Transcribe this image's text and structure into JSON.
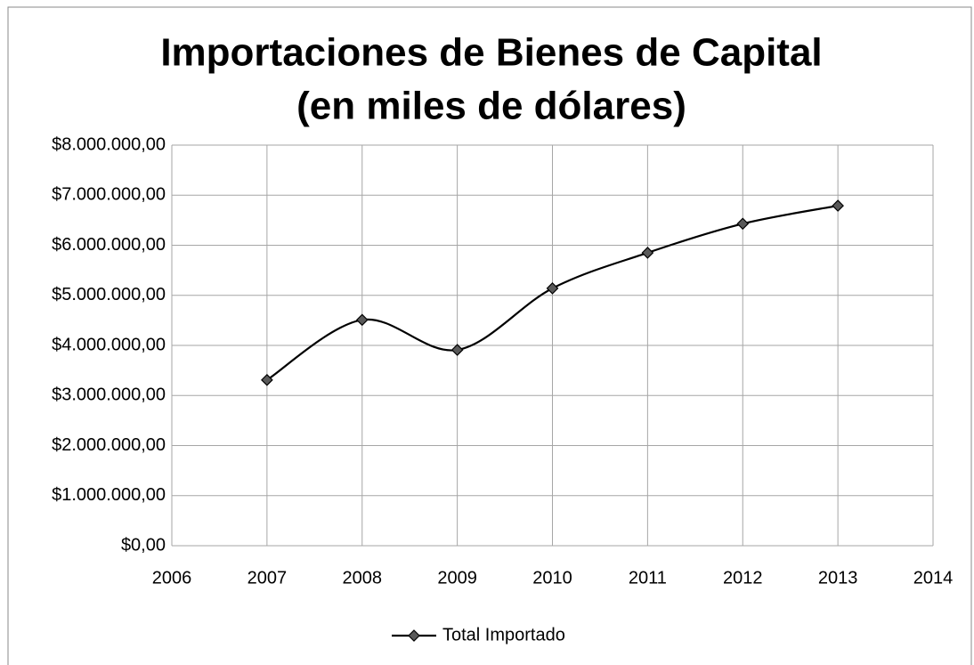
{
  "chart_data": {
    "type": "line",
    "title": [
      "Importaciones de Bienes de Capital",
      "(en miles de dólares)"
    ],
    "x": [
      2007,
      2008,
      2009,
      2010,
      2011,
      2012,
      2013
    ],
    "series": [
      {
        "name": "Total Importado",
        "color": "#000000",
        "marker_color": "#595959",
        "values": [
          3310000,
          4510000,
          3910000,
          5140000,
          5850000,
          6430000,
          6790000
        ]
      }
    ],
    "xlim": [
      2006,
      2014
    ],
    "xticks": [
      2006,
      2007,
      2008,
      2009,
      2010,
      2011,
      2012,
      2013,
      2014
    ],
    "ylim": [
      0,
      8000000
    ],
    "yticks": [
      {
        "value": 0,
        "label": "$0,00"
      },
      {
        "value": 1000000,
        "label": "$1.000.000,00"
      },
      {
        "value": 2000000,
        "label": "$2.000.000,00"
      },
      {
        "value": 3000000,
        "label": "$3.000.000,00"
      },
      {
        "value": 4000000,
        "label": "$4.000.000,00"
      },
      {
        "value": 5000000,
        "label": "$5.000.000,00"
      },
      {
        "value": 6000000,
        "label": "$6.000.000,00"
      },
      {
        "value": 7000000,
        "label": "$7.000.000,00"
      },
      {
        "value": 8000000,
        "label": "$8.000.000,00"
      }
    ],
    "grid": true,
    "smooth": true,
    "legend": "bottom"
  }
}
